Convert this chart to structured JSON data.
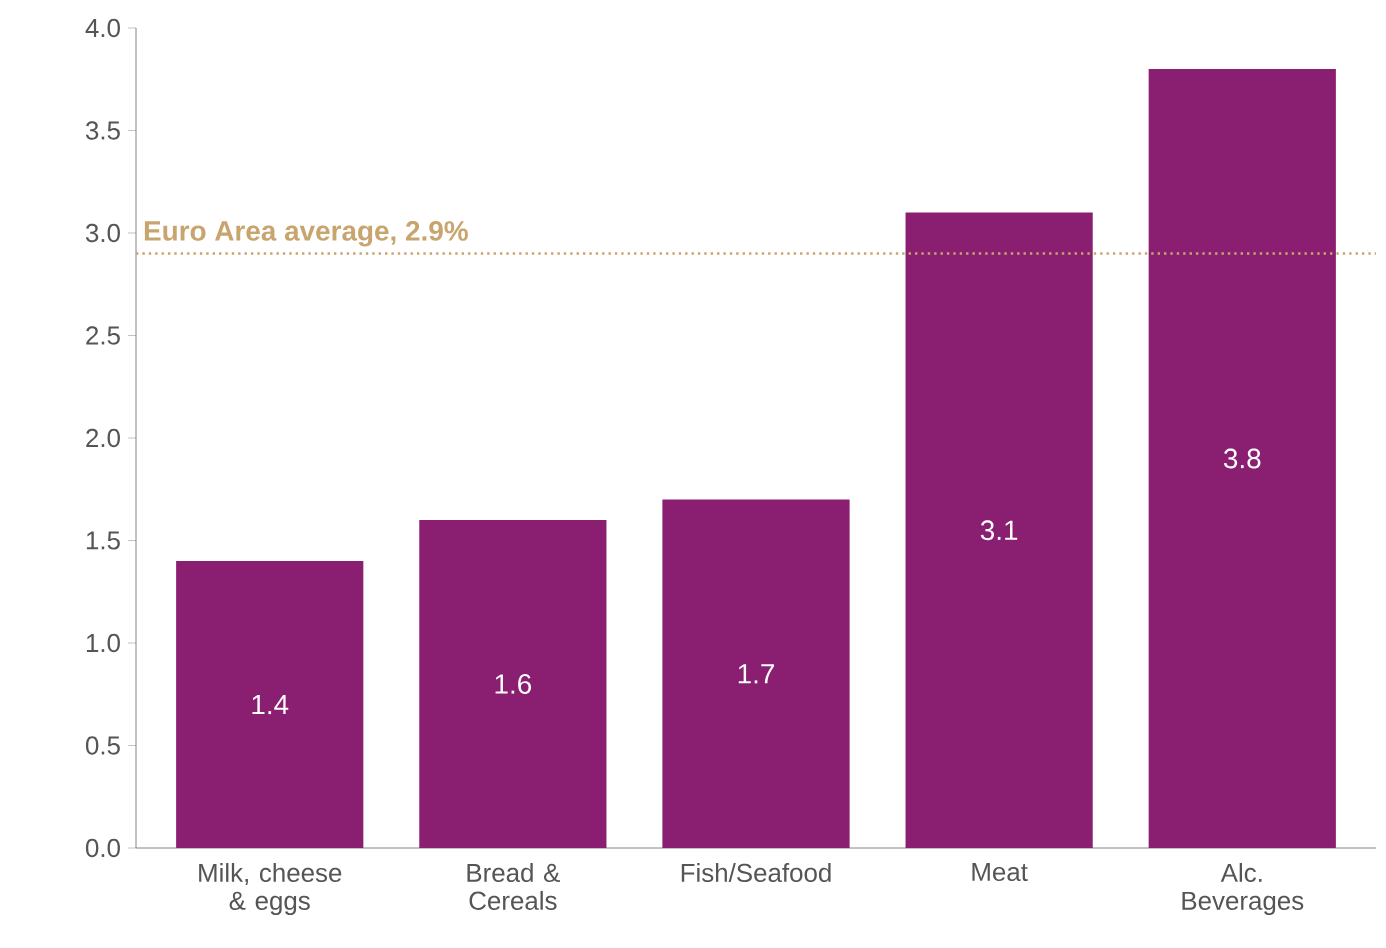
{
  "chart_data": {
    "type": "bar",
    "categories": [
      "Milk, cheese & eggs",
      "Bread & Cereals",
      "Fish/Seafood",
      "Meat",
      "Alc. Beverages"
    ],
    "values": [
      1.4,
      1.6,
      1.7,
      3.1,
      3.8
    ],
    "color": "#8a1f72",
    "ylim": [
      0,
      4
    ],
    "yticks": [
      {
        "value": 0,
        "label": "0.0"
      },
      {
        "value": 0.5,
        "label": "0.5"
      },
      {
        "value": 1,
        "label": "1.0"
      },
      {
        "value": 1.5,
        "label": "1.5"
      },
      {
        "value": 2,
        "label": "2.0"
      },
      {
        "value": 2.5,
        "label": "2.5"
      },
      {
        "value": 3,
        "label": "3.0"
      },
      {
        "value": 3.5,
        "label": "3.5"
      },
      {
        "value": 4,
        "label": "4.0"
      }
    ],
    "data_labels": true,
    "ref_lines": [
      {
        "axis": "y",
        "value": 2.9,
        "label": "Euro Area average, 2.9%",
        "color": "#c8a56e",
        "line_style": "dotted"
      }
    ]
  }
}
